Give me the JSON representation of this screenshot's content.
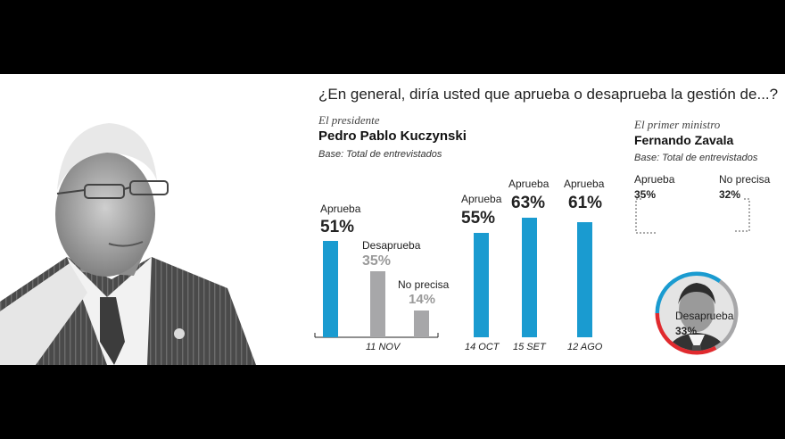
{
  "header": {
    "question": "¿En general, diría usted que aprueba o desaprueba la gestión de...?"
  },
  "colors": {
    "aprueba": "#1a9bd0",
    "desaprueba": "#e02a2e",
    "no_precisa": "#a7a7a9",
    "background": "#000000",
    "panel": "#ffffff"
  },
  "president": {
    "kicker": "El presidente",
    "name": "Pedro Pablo Kuczynski",
    "base": "Base: Total de entrevistados"
  },
  "minister": {
    "kicker": "El primer ministro",
    "name": "Fernando Zavala",
    "base": "Base: Total de entrevistados"
  },
  "chart_data": [
    {
      "type": "bar",
      "title": "Pedro Pablo Kuczynski",
      "categories": [
        "11 NOV",
        "14 OCT",
        "15 SET",
        "12 AGO"
      ],
      "groups": [
        {
          "date": "11 NOV",
          "bars": [
            {
              "label": "Aprueba",
              "value": 51,
              "value_label": "51%"
            },
            {
              "label": "Desaprueba",
              "value": 35,
              "value_label": "35%"
            },
            {
              "label": "No precisa",
              "value": 14,
              "value_label": "14%"
            }
          ]
        },
        {
          "date": "14 OCT",
          "bars": [
            {
              "label": "Aprueba",
              "value": 55,
              "value_label": "55%"
            }
          ]
        },
        {
          "date": "15 SET",
          "bars": [
            {
              "label": "Aprueba",
              "value": 63,
              "value_label": "63%"
            }
          ]
        },
        {
          "date": "12 AGO",
          "bars": [
            {
              "label": "Aprueba",
              "value": 61,
              "value_label": "61%"
            }
          ]
        }
      ],
      "ylim": [
        0,
        70
      ],
      "grid": false
    },
    {
      "type": "pie",
      "title": "Fernando Zavala",
      "slices": [
        {
          "label": "Aprueba",
          "value": 35,
          "value_label": "35%"
        },
        {
          "label": "No precisa",
          "value": 32,
          "value_label": "32%"
        },
        {
          "label": "Desaprueba",
          "value": 33,
          "value_label": "33%"
        }
      ]
    }
  ]
}
